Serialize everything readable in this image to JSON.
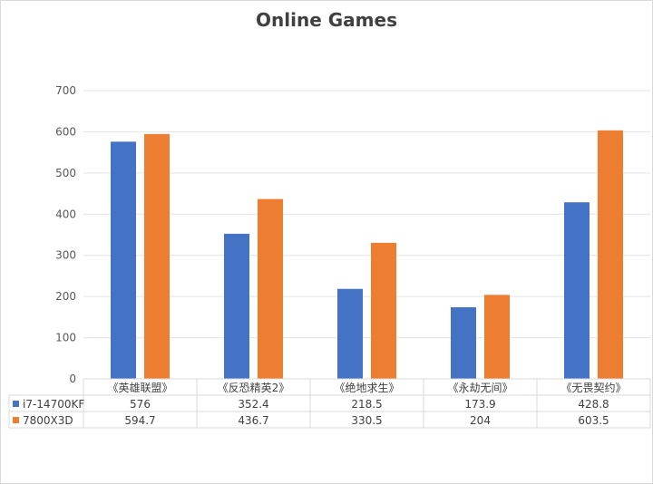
{
  "chart_data": {
    "type": "bar",
    "title": "Online Games",
    "categories": [
      "《英雄联盟》",
      "《反恐精英2》",
      "《绝地求生》",
      "《永劫无间》",
      "《无畏契约》"
    ],
    "series": [
      {
        "name": "i7-14700KF",
        "values": [
          576,
          352.4,
          218.5,
          173.9,
          428.8
        ],
        "color": "#4472C4"
      },
      {
        "name": "7800X3D",
        "values": [
          594.7,
          436.7,
          330.5,
          204,
          603.5
        ],
        "color": "#ED7D31"
      }
    ],
    "value_labels": [
      [
        "576",
        "352.4",
        "218.5",
        "173.9",
        "428.8"
      ],
      [
        "594.7",
        "436.7",
        "330.5",
        "204",
        "603.5"
      ]
    ],
    "ylim": [
      0,
      700
    ],
    "yticks": [
      "0",
      "100",
      "200",
      "300",
      "400",
      "500",
      "600",
      "700"
    ],
    "grid": true,
    "legend": "data-table",
    "xlabel": "",
    "ylabel": ""
  }
}
